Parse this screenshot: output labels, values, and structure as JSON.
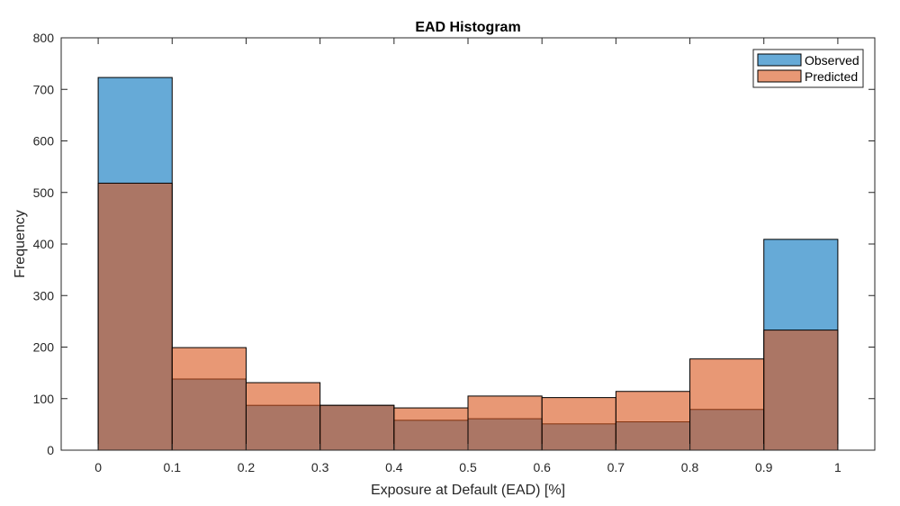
{
  "chart_data": {
    "type": "bar",
    "title": "EAD Histogram",
    "xlabel": "Exposure at Default (EAD) [%]",
    "ylabel": "Frequency",
    "xlim": [
      -0.05,
      1.05
    ],
    "ylim": [
      0,
      800
    ],
    "xticks": [
      "0",
      "0.1",
      "0.2",
      "0.3",
      "0.4",
      "0.5",
      "0.6",
      "0.7",
      "0.8",
      "0.9",
      "1"
    ],
    "yticks": [
      "0",
      "100",
      "200",
      "300",
      "400",
      "500",
      "600",
      "700",
      "800"
    ],
    "bin_edges": [
      0,
      0.1,
      0.2,
      0.3,
      0.4,
      0.5,
      0.6,
      0.7,
      0.8,
      0.9,
      1.0
    ],
    "grid": false,
    "legend_position": "top-right",
    "series": [
      {
        "name": "Observed",
        "color": "#0072BD",
        "face_alpha": 0.6,
        "values": [
          723,
          138,
          87,
          87,
          58,
          61,
          51,
          55,
          79,
          409
        ]
      },
      {
        "name": "Predicted",
        "color": "#D95319",
        "face_alpha": 0.6,
        "values": [
          518,
          199,
          131,
          87,
          82,
          105,
          102,
          114,
          177,
          233
        ]
      }
    ]
  }
}
